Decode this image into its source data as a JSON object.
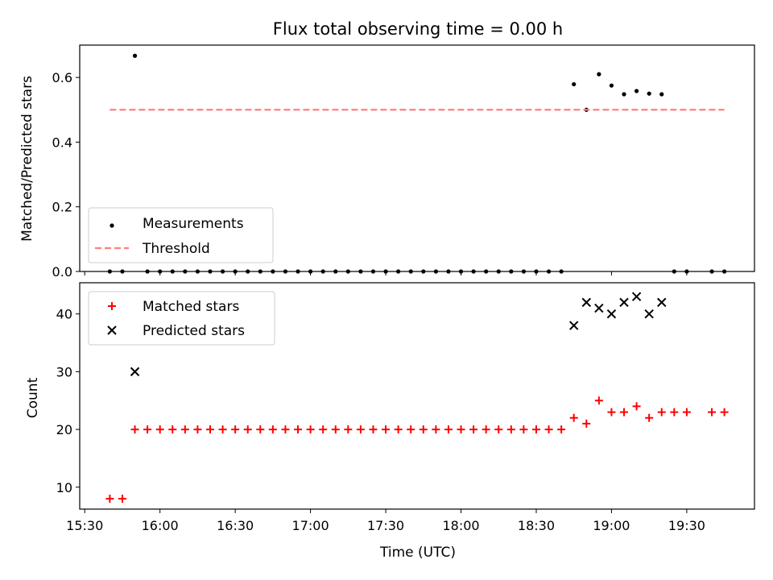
{
  "chart_data": [
    {
      "type": "scatter",
      "title": "Flux total observing time = 0.00 h",
      "xlabel": "",
      "ylabel": "Matched/Predicted stars",
      "xlim": [
        "15:28",
        "19:57"
      ],
      "ylim": [
        0,
        0.7
      ],
      "yticks": [
        "0.0",
        "0.2",
        "0.4",
        "0.6"
      ],
      "grid": false,
      "legend_position": "lower-left",
      "series": [
        {
          "name": "Measurements",
          "kind": "dot",
          "color": "#000000",
          "points": [
            [
              "15:40",
              0
            ],
            [
              "15:45",
              0
            ],
            [
              "15:50",
              0.667
            ],
            [
              "15:55",
              0
            ],
            [
              "16:00",
              0
            ],
            [
              "16:05",
              0
            ],
            [
              "16:10",
              0
            ],
            [
              "16:15",
              0
            ],
            [
              "16:20",
              0
            ],
            [
              "16:25",
              0
            ],
            [
              "16:30",
              0
            ],
            [
              "16:35",
              0
            ],
            [
              "16:40",
              0
            ],
            [
              "16:45",
              0
            ],
            [
              "16:50",
              0
            ],
            [
              "16:55",
              0
            ],
            [
              "17:00",
              0
            ],
            [
              "17:05",
              0
            ],
            [
              "17:10",
              0
            ],
            [
              "17:15",
              0
            ],
            [
              "17:20",
              0
            ],
            [
              "17:25",
              0
            ],
            [
              "17:30",
              0
            ],
            [
              "17:35",
              0
            ],
            [
              "17:40",
              0
            ],
            [
              "17:45",
              0
            ],
            [
              "17:50",
              0
            ],
            [
              "17:55",
              0
            ],
            [
              "18:00",
              0
            ],
            [
              "18:05",
              0
            ],
            [
              "18:10",
              0
            ],
            [
              "18:15",
              0
            ],
            [
              "18:20",
              0
            ],
            [
              "18:25",
              0
            ],
            [
              "18:30",
              0
            ],
            [
              "18:35",
              0
            ],
            [
              "18:40",
              0
            ],
            [
              "18:45",
              0.579
            ],
            [
              "18:50",
              0.5
            ],
            [
              "18:55",
              0.61
            ],
            [
              "19:00",
              0.575
            ],
            [
              "19:05",
              0.548
            ],
            [
              "19:10",
              0.558
            ],
            [
              "19:15",
              0.55
            ],
            [
              "19:20",
              0.548
            ],
            [
              "19:25",
              0
            ],
            [
              "19:30",
              0
            ],
            [
              "19:40",
              0
            ],
            [
              "19:45",
              0
            ]
          ]
        },
        {
          "name": "Threshold",
          "kind": "dashed-line",
          "color": "#ff7f7f",
          "points": [
            [
              "15:40",
              0.5
            ],
            [
              "19:45",
              0.5
            ]
          ]
        }
      ]
    },
    {
      "type": "scatter",
      "title": "",
      "xlabel": "Time (UTC)",
      "ylabel": "Count",
      "xlim": [
        "15:28",
        "19:57"
      ],
      "ylim": [
        6.2,
        45.4
      ],
      "xticks": [
        "15:30",
        "16:00",
        "16:30",
        "17:00",
        "17:30",
        "18:00",
        "18:30",
        "19:00",
        "19:30"
      ],
      "yticks": [
        "10",
        "20",
        "30",
        "40"
      ],
      "grid": false,
      "legend_position": "upper-left",
      "series": [
        {
          "name": "Matched stars",
          "kind": "plus",
          "color": "#ff0000",
          "points": [
            [
              "15:40",
              8
            ],
            [
              "15:45",
              8
            ],
            [
              "15:50",
              20
            ],
            [
              "15:55",
              20
            ],
            [
              "16:00",
              20
            ],
            [
              "16:05",
              20
            ],
            [
              "16:10",
              20
            ],
            [
              "16:15",
              20
            ],
            [
              "16:20",
              20
            ],
            [
              "16:25",
              20
            ],
            [
              "16:30",
              20
            ],
            [
              "16:35",
              20
            ],
            [
              "16:40",
              20
            ],
            [
              "16:45",
              20
            ],
            [
              "16:50",
              20
            ],
            [
              "16:55",
              20
            ],
            [
              "17:00",
              20
            ],
            [
              "17:05",
              20
            ],
            [
              "17:10",
              20
            ],
            [
              "17:15",
              20
            ],
            [
              "17:20",
              20
            ],
            [
              "17:25",
              20
            ],
            [
              "17:30",
              20
            ],
            [
              "17:35",
              20
            ],
            [
              "17:40",
              20
            ],
            [
              "17:45",
              20
            ],
            [
              "17:50",
              20
            ],
            [
              "17:55",
              20
            ],
            [
              "18:00",
              20
            ],
            [
              "18:05",
              20
            ],
            [
              "18:10",
              20
            ],
            [
              "18:15",
              20
            ],
            [
              "18:20",
              20
            ],
            [
              "18:25",
              20
            ],
            [
              "18:30",
              20
            ],
            [
              "18:35",
              20
            ],
            [
              "18:40",
              20
            ],
            [
              "18:45",
              22
            ],
            [
              "18:50",
              21
            ],
            [
              "18:55",
              25
            ],
            [
              "19:00",
              23
            ],
            [
              "19:05",
              23
            ],
            [
              "19:10",
              24
            ],
            [
              "19:15",
              22
            ],
            [
              "19:20",
              23
            ],
            [
              "19:25",
              23
            ],
            [
              "19:30",
              23
            ],
            [
              "19:40",
              23
            ],
            [
              "19:45",
              23
            ]
          ]
        },
        {
          "name": "Predicted stars",
          "kind": "x",
          "color": "#000000",
          "points": [
            [
              "15:50",
              30
            ],
            [
              "18:45",
              38
            ],
            [
              "18:50",
              42
            ],
            [
              "18:55",
              41
            ],
            [
              "19:00",
              40
            ],
            [
              "19:05",
              42
            ],
            [
              "19:10",
              43
            ],
            [
              "19:15",
              40
            ],
            [
              "19:20",
              42
            ]
          ]
        }
      ]
    }
  ]
}
